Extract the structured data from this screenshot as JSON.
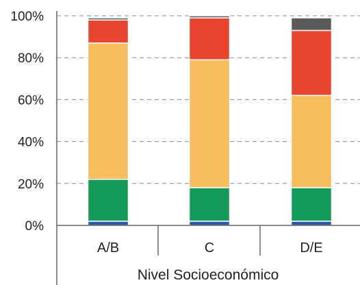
{
  "chart_data": {
    "type": "bar",
    "stacked": true,
    "xlabel": "Nivel Socioeconómico",
    "ylabel": "",
    "ylim": [
      0,
      100
    ],
    "y_ticks": [
      "0%",
      "20%",
      "40%",
      "60%",
      "80%",
      "100%"
    ],
    "grid": "horizontal dashed",
    "categories": [
      "A/B",
      "C",
      "D/E"
    ],
    "series": [
      {
        "color": "#2a57a8",
        "values": [
          2,
          2,
          2
        ]
      },
      {
        "color": "#149a5a",
        "values": [
          20,
          16,
          16
        ]
      },
      {
        "color": "#f8bd5c",
        "values": [
          65,
          61,
          44
        ]
      },
      {
        "color": "#e8442f",
        "values": [
          11,
          20,
          31
        ]
      },
      {
        "color": "#5a5a5a",
        "values": [
          1,
          1,
          6
        ]
      }
    ]
  }
}
